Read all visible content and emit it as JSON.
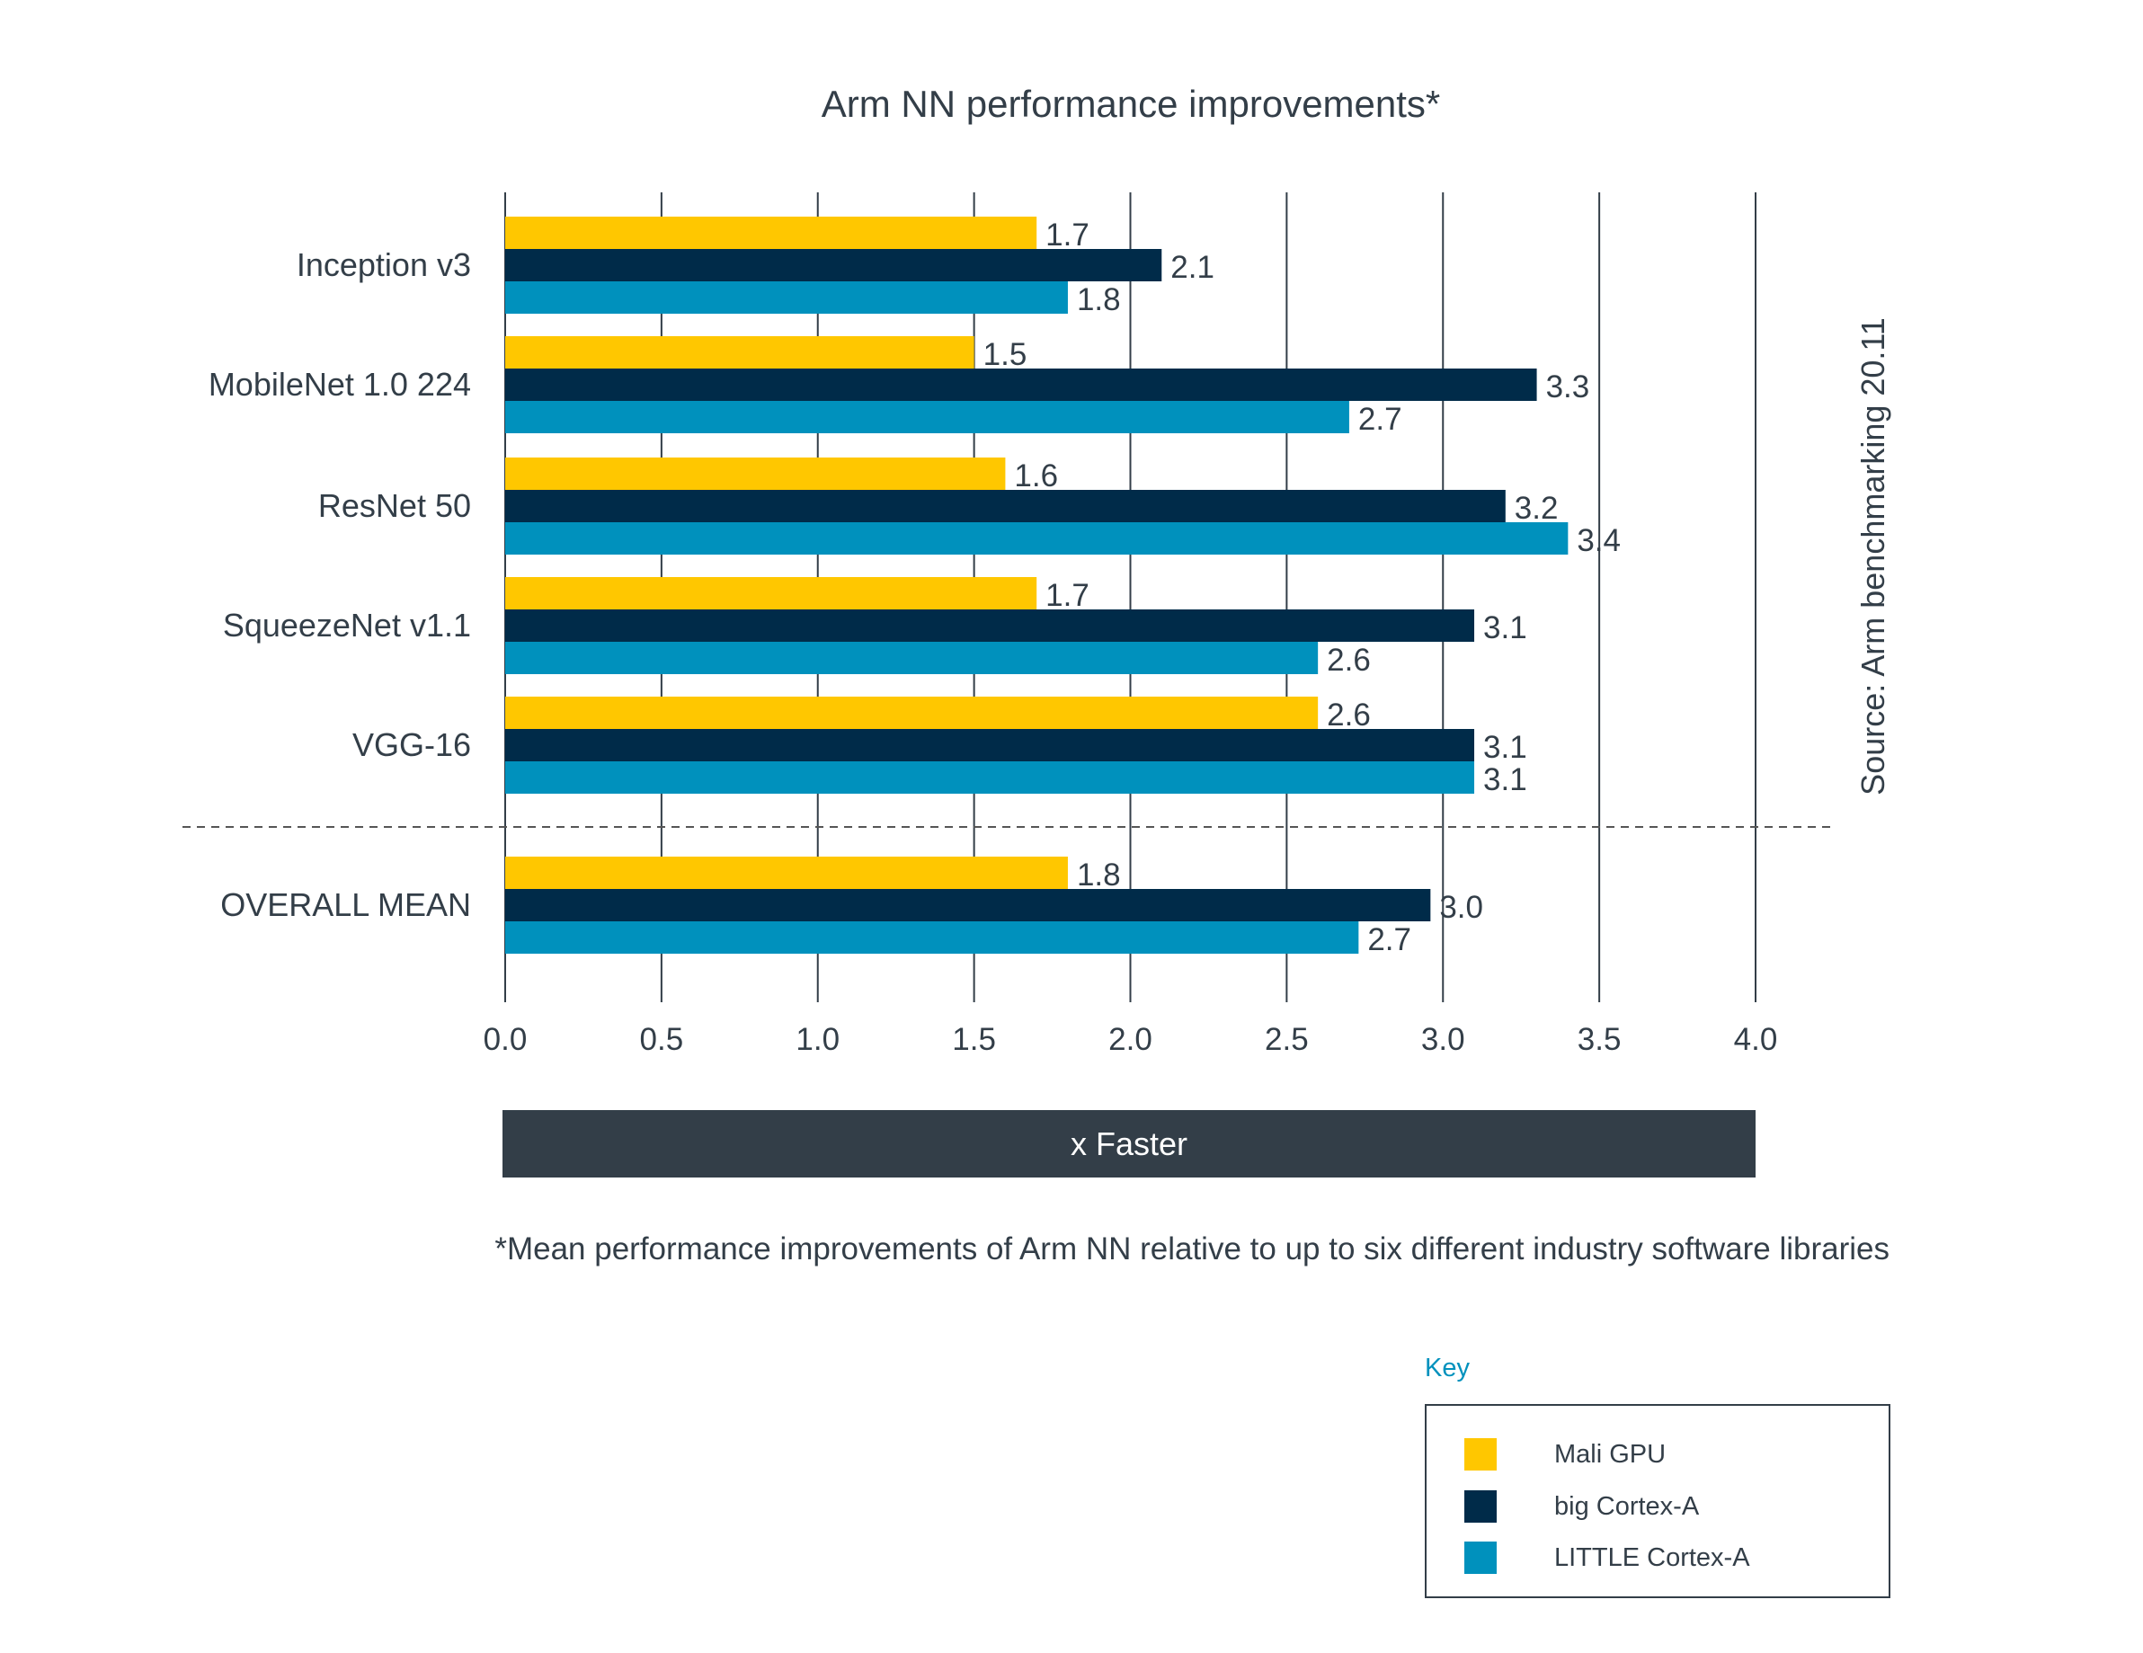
{
  "chart_data": {
    "type": "bar",
    "orientation": "horizontal",
    "title": "Arm NN performance improvements*",
    "xlabel": "x Faster",
    "xlim": [
      0,
      4.0
    ],
    "xticks": [
      "0.0",
      "0.5",
      "1.0",
      "1.5",
      "2.0",
      "2.5",
      "3.0",
      "3.5",
      "4.0"
    ],
    "grid": true,
    "categories": [
      "Inception v3",
      "MobileNet 1.0 224",
      "ResNet 50",
      "SqueezeNet v1.1",
      "VGG-16",
      "OVERALL MEAN"
    ],
    "series": [
      {
        "name": "Mali GPU",
        "color": "#FFC700",
        "values": [
          1.7,
          1.5,
          1.6,
          1.7,
          2.6,
          1.8
        ],
        "labels": [
          "1.7",
          "1.5",
          "1.6",
          "1.7",
          "2.6",
          "1.8"
        ]
      },
      {
        "name": "big Cortex-A",
        "color": "#002B49",
        "values": [
          2.1,
          3.3,
          3.2,
          3.1,
          3.1,
          2.96
        ],
        "labels": [
          "2.1",
          "3.3",
          "3.2",
          "3.1",
          "3.1",
          "3.0"
        ]
      },
      {
        "name": "LITTLE Cortex-A",
        "color": "#0091BD",
        "values": [
          1.8,
          2.7,
          3.4,
          2.6,
          3.1,
          2.73
        ],
        "labels": [
          "1.8",
          "2.7",
          "3.4",
          "2.6",
          "3.1",
          "2.7"
        ]
      }
    ],
    "legend_title": "Key",
    "legend_placement": "bottom-right",
    "source": "Source: Arm benchmarking 20.11",
    "footnote": "*Mean performance improvements of Arm NN relative to up to six different industry software libraries"
  }
}
